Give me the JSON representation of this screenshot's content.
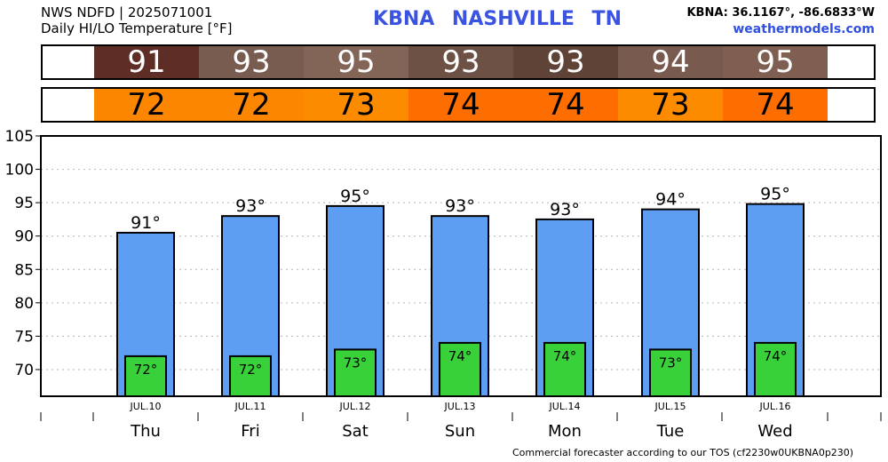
{
  "header": {
    "line1": "NWS NDFD | 2025071001",
    "line2": "Daily HI/LO Temperature [°F]",
    "station": "KBNA  NASHVILLE     TN",
    "coords": "KBNA: 36.1167°, -86.6833°W",
    "site": "weathermodels.com"
  },
  "colors": {
    "high_cells": [
      "#5e2e26",
      "#785c50",
      "#836558",
      "#6d5145",
      "#5f4336",
      "#785b4e",
      "#7e5f51"
    ],
    "low_cells": [
      "#fc8600",
      "#fc8600",
      "#fc8b00",
      "#fd6d00",
      "#fd6d00",
      "#fc8b00",
      "#fd6d00"
    ],
    "high_bar": "#5d9ef2",
    "low_bar": "#39d139"
  },
  "strips": {
    "high": [
      "91",
      "93",
      "95",
      "93",
      "93",
      "94",
      "95"
    ],
    "low": [
      "72",
      "72",
      "73",
      "74",
      "74",
      "73",
      "74"
    ]
  },
  "chart_data": {
    "type": "bar",
    "categories": [
      "Thu",
      "Fri",
      "Sat",
      "Sun",
      "Mon",
      "Tue",
      "Wed"
    ],
    "dates": [
      "JUL.10",
      "JUL.11",
      "JUL.12",
      "JUL.13",
      "JUL.14",
      "JUL.15",
      "JUL.16"
    ],
    "series": [
      {
        "values": [
          90.5,
          93,
          94.5,
          93,
          92.5,
          94,
          94.8
        ],
        "labels": [
          "91°",
          "93°",
          "95°",
          "93°",
          "93°",
          "94°",
          "95°"
        ]
      },
      {
        "values": [
          72,
          72,
          73,
          74,
          74,
          73,
          74
        ],
        "labels": [
          "72°",
          "72°",
          "73°",
          "74°",
          "74°",
          "73°",
          "74°"
        ]
      }
    ],
    "ylim": [
      66,
      105
    ],
    "yticks": [
      "70",
      "75",
      "80",
      "85",
      "90",
      "95",
      "100",
      "105"
    ],
    "grid": true
  },
  "footer": "Commercial forecaster according to our TOS (cf2230w0UKBNA0p230)"
}
